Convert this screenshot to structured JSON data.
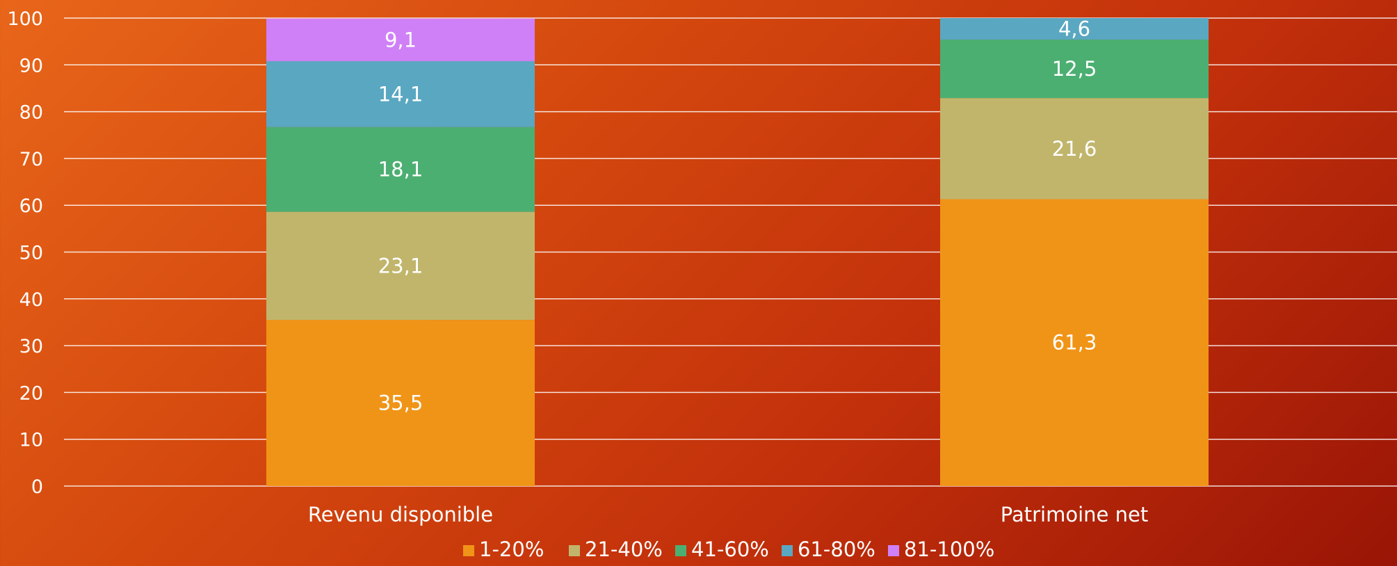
{
  "chart_data": {
    "type": "bar",
    "stacked": true,
    "categories": [
      "Revenu disponible",
      "Patrimoine net"
    ],
    "series": [
      {
        "name": "1-20%",
        "color": "#f09418",
        "values": [
          35.5,
          61.3
        ],
        "labels": [
          "35,5",
          "61,3"
        ]
      },
      {
        "name": "21-40%",
        "color": "#c1b56c",
        "values": [
          23.1,
          21.6
        ],
        "labels": [
          "23,1",
          "21,6"
        ]
      },
      {
        "name": "41-60%",
        "color": "#4caf72",
        "values": [
          18.1,
          12.5
        ],
        "labels": [
          "18,1",
          "12,5"
        ]
      },
      {
        "name": "61-80%",
        "color": "#5aa7c1",
        "values": [
          14.1,
          4.6
        ],
        "labels": [
          "14,1",
          "4,6"
        ]
      },
      {
        "name": "81-100%",
        "color": "#cf80f7",
        "values": [
          9.1,
          0
        ],
        "labels": [
          "9,1",
          ""
        ]
      }
    ],
    "yticks": [
      "0",
      "10",
      "20",
      "30",
      "40",
      "50",
      "60",
      "70",
      "80",
      "90",
      "100"
    ],
    "ylim": [
      0,
      100
    ],
    "grid": true,
    "legend": "bottom-center",
    "title": "",
    "xlabel": "",
    "ylabel": ""
  }
}
